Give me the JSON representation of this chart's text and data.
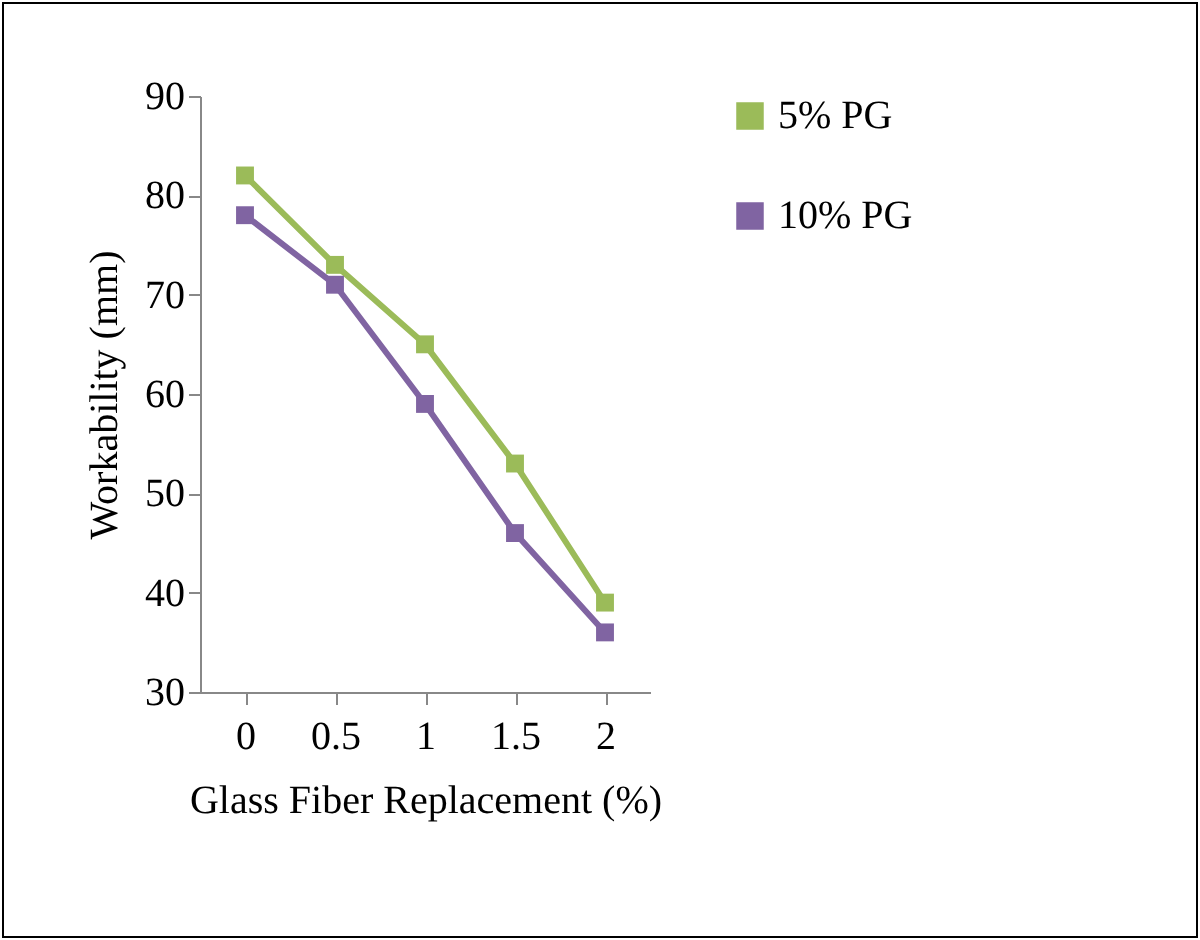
{
  "chart_data": {
    "type": "line",
    "xlabel": "Glass Fiber Replacement (%)",
    "ylabel": "Workability (mm)",
    "categories": [
      "0",
      "0.5",
      "1",
      "1.5",
      "2"
    ],
    "series": [
      {
        "name": "5% PG",
        "color": "#9bbb59",
        "values": [
          82,
          73,
          65,
          53,
          39
        ]
      },
      {
        "name": "10% PG",
        "color": "#8064a2",
        "values": [
          78,
          71,
          59,
          46,
          36
        ]
      }
    ],
    "ylim": [
      30,
      90
    ],
    "yticks": [
      30,
      40,
      50,
      60,
      70,
      80,
      90
    ],
    "legend": "right",
    "marker": "square",
    "line_style": "solid"
  }
}
